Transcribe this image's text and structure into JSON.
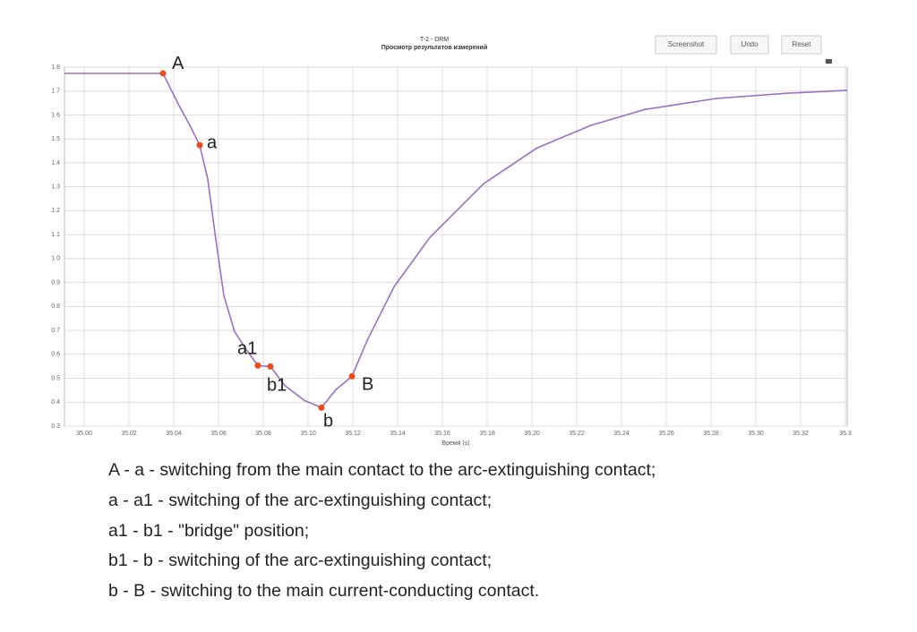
{
  "chart_data": {
    "type": "line",
    "title": "T-2 - DRM",
    "subtitle": "Просмотр результатов измерений",
    "x_label": "Время (s)",
    "x": [
      34.9912,
      35.0352,
      35.0424,
      35.0472,
      35.0516,
      35.0552,
      35.0584,
      35.0624,
      35.0672,
      35.0724,
      35.0776,
      35.0832,
      35.0896,
      35.0984,
      35.106,
      35.1124,
      35.1196,
      35.1264,
      35.1384,
      35.1544,
      35.1784,
      35.2024,
      35.2264,
      35.2504,
      35.2824,
      35.3144,
      35.3408
    ],
    "values": [
      1.774,
      1.774,
      1.639,
      1.557,
      1.474,
      1.332,
      1.107,
      0.845,
      0.695,
      0.62,
      0.553,
      0.549,
      0.47,
      0.407,
      0.377,
      0.452,
      0.508,
      0.658,
      0.882,
      1.088,
      1.313,
      1.463,
      1.557,
      1.623,
      1.669,
      1.691,
      1.703
    ],
    "color": "#9a70c0",
    "annotations": [
      {
        "text": "A",
        "x": 35.0352,
        "y": 1.774
      },
      {
        "text": "a",
        "x": 35.0516,
        "y": 1.474
      },
      {
        "text": "a1",
        "x": 35.0776,
        "y": 0.553
      },
      {
        "text": "b1",
        "x": 35.0832,
        "y": 0.549
      },
      {
        "text": "b",
        "x": 35.106,
        "y": 0.377
      },
      {
        "text": "B",
        "x": 35.1196,
        "y": 0.508
      }
    ],
    "annotation_color": "#f04a1a",
    "xlim": [
      34.9912,
      35.3408
    ],
    "ylim": [
      0.3,
      1.8
    ],
    "xticks": [
      {
        "value": 35.0,
        "label": "35.00"
      },
      {
        "value": 35.02,
        "label": "35.02"
      },
      {
        "value": 35.04,
        "label": "35.04"
      },
      {
        "value": 35.06,
        "label": "35.06"
      },
      {
        "value": 35.08,
        "label": "35.08"
      },
      {
        "value": 35.1,
        "label": "35.10"
      },
      {
        "value": 35.12,
        "label": "35.12"
      },
      {
        "value": 35.14,
        "label": "35.14"
      },
      {
        "value": 35.16,
        "label": "35.16"
      },
      {
        "value": 35.18,
        "label": "35.18"
      },
      {
        "value": 35.2,
        "label": "35.20"
      },
      {
        "value": 35.22,
        "label": "35.22"
      },
      {
        "value": 35.24,
        "label": "35.24"
      },
      {
        "value": 35.26,
        "label": "35.26"
      },
      {
        "value": 35.28,
        "label": "35.28"
      },
      {
        "value": 35.3,
        "label": "35.30"
      },
      {
        "value": 35.32,
        "label": "35.32"
      },
      {
        "value": 35.34,
        "label": "35.3"
      }
    ],
    "yticks": [
      0.3,
      0.4,
      0.5,
      0.6,
      0.7,
      0.8,
      0.9,
      {
        "value": 1,
        "label": "1.0"
      },
      1.1,
      1.2,
      1.3,
      1.4,
      1.5,
      1.6,
      1.7,
      1.8
    ],
    "grid": true
  },
  "buttons": [
    "Screenshot",
    "Undo",
    "Reset"
  ],
  "captions": [
    "A - a - switching from the main contact to the arc-extinguishing contact;",
    "a - a1 - switching of the arc-extinguishing contact;",
    "a1 - b1 - \"bridge\" position;",
    "b1 - b - switching of the arc-extinguishing contact;",
    "b - B - switching to the main current-conducting contact."
  ]
}
